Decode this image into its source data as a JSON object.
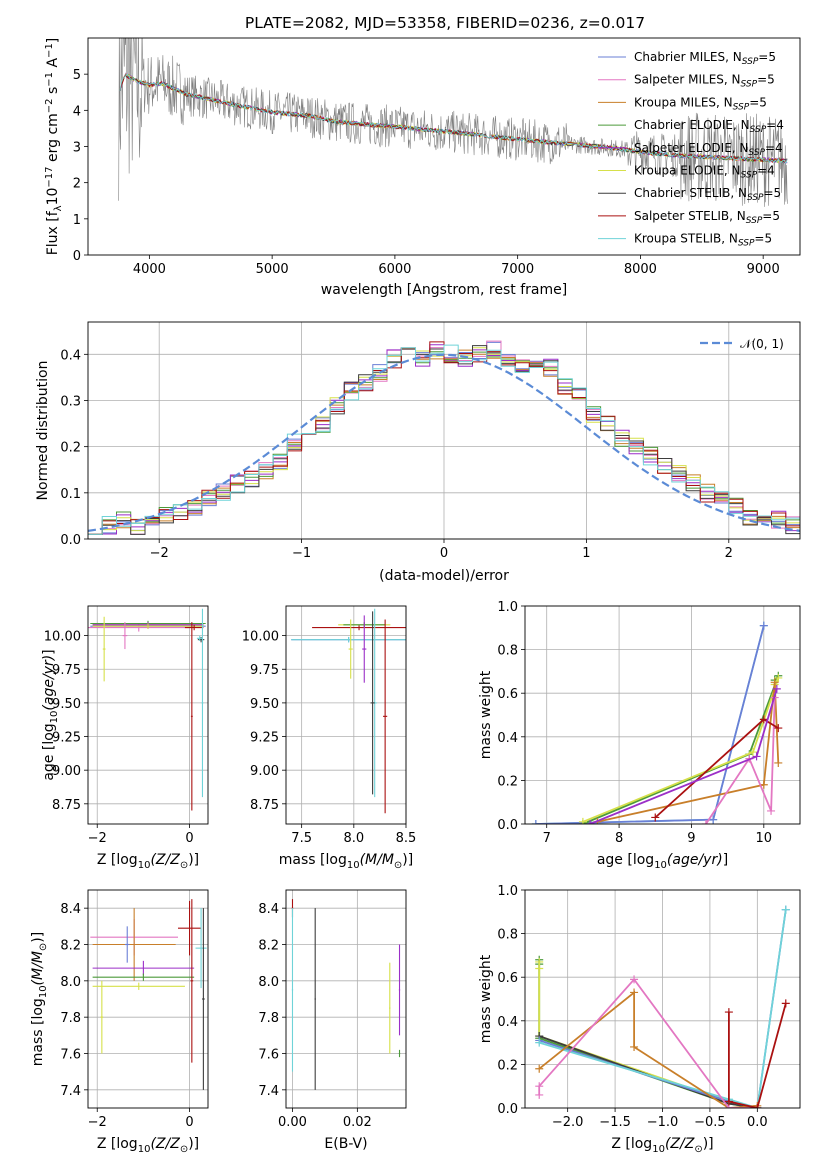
{
  "figure": {
    "title": "PLATE=2082, MJD=53358, FIBERID=0236, z=0.017"
  },
  "colors": {
    "Chabrier MILES": "#6a7fd6",
    "Salpeter MILES": "#e377c2",
    "Kroupa MILES": "#c87f2a",
    "Chabrier ELODIE": "#4c9a3a",
    "Salpeter ELODIE": "#9b2fc8",
    "Kroupa ELODIE": "#d6e04a",
    "Chabrier STELIB": "#3d3d3d",
    "Salpeter STELIB": "#aa1111",
    "Kroupa STELIB": "#6fd3d8",
    "data": "#808080",
    "normal": "#5b8bd6"
  },
  "chart_data": [
    {
      "id": "spectrum",
      "type": "line",
      "xlabel": "wavelength [Angstrom, rest frame]",
      "ylabel": "Flux [f_λ10^-17 erg cm^-2 s^-1 A^-1]",
      "xlim": [
        3500,
        9300
      ],
      "ylim": [
        0,
        6
      ],
      "xticks": [
        4000,
        5000,
        6000,
        7000,
        8000,
        9000
      ],
      "yticks": [
        0,
        1,
        2,
        3,
        4,
        5
      ],
      "legend_position": "top-right",
      "series": [
        {
          "name": "Chabrier MILES, N_SSP=5",
          "label_main": "Chabrier MILES, N",
          "label_sub": "SSP",
          "label_end": "=5"
        },
        {
          "name": "Salpeter MILES, N_SSP=5",
          "label_main": "Salpeter MILES, N",
          "label_sub": "SSP",
          "label_end": "=5"
        },
        {
          "name": "Kroupa MILES, N_SSP=5",
          "label_main": "Kroupa MILES, N",
          "label_sub": "SSP",
          "label_end": "=5"
        },
        {
          "name": "Chabrier ELODIE, N_SSP=4",
          "label_main": "Chabrier ELODIE, N",
          "label_sub": "SSP",
          "label_end": "=4"
        },
        {
          "name": "Salpeter ELODIE, N_SSP=4",
          "label_main": "Salpeter ELODIE, N",
          "label_sub": "SSP",
          "label_end": "=4"
        },
        {
          "name": "Kroupa ELODIE, N_SSP=4",
          "label_main": "Kroupa ELODIE, N",
          "label_sub": "SSP",
          "label_end": "=4"
        },
        {
          "name": "Chabrier STELIB, N_SSP=5",
          "label_main": "Chabrier STELIB, N",
          "label_sub": "SSP",
          "label_end": "=5"
        },
        {
          "name": "Salpeter STELIB, N_SSP=5",
          "label_main": "Salpeter STELIB, N",
          "label_sub": "SSP",
          "label_end": "=5"
        },
        {
          "name": "Kroupa STELIB, N_SSP=5",
          "label_main": "Kroupa STELIB, N",
          "label_sub": "SSP",
          "label_end": "=5"
        }
      ],
      "continuum": {
        "x": [
          3750,
          3800,
          3900,
          4000,
          4100,
          4300,
          4500,
          4700,
          5000,
          5300,
          5500,
          5800,
          6000,
          6300,
          6600,
          7000,
          7300,
          7500,
          7800,
          8000,
          8300,
          8600,
          8900,
          9200
        ],
        "y": [
          4.5,
          5.0,
          4.8,
          4.7,
          4.75,
          4.45,
          4.3,
          4.15,
          3.95,
          3.85,
          3.7,
          3.6,
          3.55,
          3.45,
          3.35,
          3.2,
          3.1,
          3.05,
          2.95,
          2.85,
          2.75,
          2.7,
          2.65,
          2.6
        ]
      }
    },
    {
      "id": "residuals",
      "type": "step",
      "xlabel": "(data-model)/error",
      "ylabel": "Normed distribution",
      "xlim": [
        -2.5,
        2.5
      ],
      "ylim": [
        0,
        0.47
      ],
      "xticks": [
        -2,
        -1,
        0,
        1,
        2
      ],
      "yticks": [
        0.0,
        0.1,
        0.2,
        0.3,
        0.4
      ],
      "grid": true,
      "legend_position": "top-right",
      "bin_width": 0.1,
      "bin_start": -2.5,
      "reference_curve": {
        "name": "N(0, 1)",
        "style": "dashed"
      },
      "values": [
        0.03,
        0.03,
        0.04,
        0.03,
        0.03,
        0.05,
        0.06,
        0.07,
        0.09,
        0.1,
        0.12,
        0.13,
        0.15,
        0.17,
        0.21,
        0.23,
        0.25,
        0.29,
        0.32,
        0.34,
        0.36,
        0.39,
        0.42,
        0.39,
        0.41,
        0.4,
        0.39,
        0.4,
        0.41,
        0.39,
        0.38,
        0.38,
        0.37,
        0.33,
        0.31,
        0.27,
        0.25,
        0.22,
        0.2,
        0.18,
        0.16,
        0.14,
        0.12,
        0.1,
        0.09,
        0.07,
        0.05,
        0.04,
        0.04,
        0.03
      ]
    },
    {
      "id": "age-vs-Z",
      "type": "scatter",
      "xlabel_main": "Z [log",
      "xlabel_rest": "(Z/Z",
      "xlabel_end": ")]",
      "ylabel": "age  [log10(age/yr)]",
      "xlim": [
        -2.2,
        0.4
      ],
      "ylim": [
        8.6,
        10.22
      ],
      "xticks": [
        -2,
        0
      ],
      "yticks": [
        8.75,
        9.0,
        9.25,
        9.5,
        9.75,
        10.0
      ],
      "grid": true,
      "points": [
        {
          "model": "Chabrier MILES",
          "x": -0.9,
          "y": 10.07,
          "xerr": 1.25,
          "yerr": 0.02
        },
        {
          "model": "Salpeter MILES",
          "x": -1.1,
          "y": 10.06,
          "xerr": 1.1,
          "yerr": 0.03
        },
        {
          "model": "Kroupa MILES",
          "x": -0.9,
          "y": 10.08,
          "xerr": 1.2,
          "yerr": 0.02
        },
        {
          "model": "Chabrier ELODIE",
          "x": -0.9,
          "y": 10.09,
          "xerr": 1.25,
          "yerr": 0.02
        },
        {
          "model": "Salpeter ELODIE",
          "x": -0.9,
          "y": 10.08,
          "xerr": 1.2,
          "yerr": 0.02
        },
        {
          "model": "Kroupa ELODIE",
          "x": -0.9,
          "y": 10.07,
          "xerr": 1.2,
          "yerr": 0.02
        },
        {
          "model": "Chabrier STELIB",
          "x": 0.25,
          "y": 9.97,
          "xerr": 0.07,
          "yerr": 0.02
        },
        {
          "model": "Salpeter STELIB",
          "x": 0.1,
          "y": 10.06,
          "xerr": 0.2,
          "yerr": 0.02
        },
        {
          "model": "Kroupa STELIB",
          "x": 0.22,
          "y": 9.98,
          "xerr": 0.06,
          "yerr": 0.02
        },
        {
          "model": "Salpeter MILES",
          "x": -1.4,
          "y": 10.0,
          "xerr": 0.05,
          "yerr": 0.1
        },
        {
          "model": "Kroupa ELODIE",
          "x": -1.85,
          "y": 9.9,
          "xerr": 0.03,
          "yerr": 0.24
        },
        {
          "model": "Salpeter STELIB",
          "x": 0.05,
          "y": 9.4,
          "xerr": 0.02,
          "yerr": 0.7
        },
        {
          "model": "Kroupa STELIB",
          "x": 0.28,
          "y": 9.5,
          "xerr": 0.02,
          "yerr": 0.7
        }
      ]
    },
    {
      "id": "age-vs-mass",
      "type": "scatter",
      "xlabel_main": "mass [log",
      "xlabel_rest": "(M/M",
      "xlabel_end": ")]",
      "xlim": [
        7.35,
        8.5
      ],
      "ylim": [
        8.6,
        10.22
      ],
      "xticks": [
        7.5,
        8.0,
        8.5
      ],
      "yticks": [
        8.75,
        9.0,
        9.25,
        9.5,
        9.75,
        10.0
      ],
      "grid": true,
      "points": [
        {
          "model": "Chabrier MILES",
          "x": 7.95,
          "y": 9.97,
          "xerr": 0.55,
          "yerr": 0.02
        },
        {
          "model": "Kroupa STELIB",
          "x": 7.95,
          "y": 9.97,
          "xerr": 0.55,
          "yerr": 0.02
        },
        {
          "model": "Salpeter STELIB",
          "x": 8.05,
          "y": 10.06,
          "xerr": 0.45,
          "yerr": 0.02
        },
        {
          "model": "Kroupa ELODIE",
          "x": 8.1,
          "y": 10.08,
          "xerr": 0.25,
          "yerr": 0.02
        },
        {
          "model": "Chabrier ELODIE",
          "x": 8.1,
          "y": 10.08,
          "xerr": 0.2,
          "yerr": 0.02
        },
        {
          "model": "Salpeter STELIB",
          "x": 8.3,
          "y": 9.4,
          "xerr": 0.02,
          "yerr": 0.72
        },
        {
          "model": "Kroupa STELIB",
          "x": 8.2,
          "y": 9.5,
          "xerr": 0.02,
          "yerr": 0.7
        },
        {
          "model": "Chabrier STELIB",
          "x": 8.18,
          "y": 9.5,
          "xerr": 0.02,
          "yerr": 0.68
        },
        {
          "model": "Salpeter ELODIE",
          "x": 8.1,
          "y": 9.9,
          "xerr": 0.02,
          "yerr": 0.25
        },
        {
          "model": "Kroupa ELODIE",
          "x": 7.97,
          "y": 9.9,
          "xerr": 0.02,
          "yerr": 0.22
        }
      ]
    },
    {
      "id": "weight-vs-age",
      "type": "line",
      "xlabel": "age  [log10(age/yr)]",
      "ylabel": "mass weight",
      "xlim": [
        6.7,
        10.5
      ],
      "ylim": [
        0,
        1
      ],
      "xticks": [
        7,
        8,
        9,
        10
      ],
      "yticks": [
        0.0,
        0.2,
        0.4,
        0.6,
        0.8,
        1.0
      ],
      "grid": true,
      "series": [
        {
          "model": "Kroupa STELIB",
          "x": [
            6.85,
            9.3,
            10.0
          ],
          "y": [
            0.0,
            0.02,
            0.91
          ]
        },
        {
          "model": "Chabrier MILES",
          "x": [
            6.85,
            9.3,
            10.0
          ],
          "y": [
            0.0,
            0.02,
            0.91
          ]
        },
        {
          "model": "Chabrier ELODIE",
          "x": [
            7.5,
            9.8,
            10.2,
            10.15
          ],
          "y": [
            0.0,
            0.32,
            0.68,
            0.66
          ]
        },
        {
          "model": "Kroupa ELODIE",
          "x": [
            7.5,
            9.85,
            10.2,
            10.15
          ],
          "y": [
            0.01,
            0.33,
            0.67,
            0.64
          ]
        },
        {
          "model": "Kroupa MILES",
          "x": [
            7.7,
            10.0,
            10.15,
            10.2
          ],
          "y": [
            0.01,
            0.18,
            0.65,
            0.28
          ]
        },
        {
          "model": "Salpeter MILES",
          "x": [
            9.2,
            9.8,
            10.1,
            10.15
          ],
          "y": [
            0.0,
            0.3,
            0.06,
            0.58
          ]
        },
        {
          "model": "Salpeter STELIB",
          "x": [
            8.5,
            10.0,
            10.2
          ],
          "y": [
            0.03,
            0.48,
            0.44
          ]
        },
        {
          "model": "Salpeter ELODIE",
          "x": [
            7.6,
            9.9,
            10.18
          ],
          "y": [
            0.0,
            0.31,
            0.62
          ]
        }
      ]
    },
    {
      "id": "mass-vs-Z",
      "type": "scatter",
      "xlabel_main": "Z [log",
      "xlabel_rest": "(Z/Z",
      "xlabel_end": ")]",
      "ylabel_main": "mass [log",
      "ylabel_rest": "(M/M",
      "ylabel_end": ")]",
      "xlim": [
        -2.2,
        0.4
      ],
      "ylim": [
        7.3,
        8.5
      ],
      "xticks": [
        -2,
        0
      ],
      "yticks": [
        7.4,
        7.6,
        7.8,
        8.0,
        8.2,
        8.4
      ],
      "grid": true,
      "points": [
        {
          "model": "Salpeter MILES",
          "x": -1.2,
          "y": 8.24,
          "xerr": 0.95,
          "yerr": 0.1
        },
        {
          "model": "Kroupa MILES",
          "x": -1.2,
          "y": 8.2,
          "xerr": 0.9,
          "yerr": 0.2
        },
        {
          "model": "Salpeter ELODIE",
          "x": -1.0,
          "y": 8.07,
          "xerr": 1.1,
          "yerr": 0.04
        },
        {
          "model": "Chabrier MILES",
          "x": -1.35,
          "y": 8.2,
          "xerr": 0.05,
          "yerr": 0.1
        },
        {
          "model": "Chabrier ELODIE",
          "x": -1.0,
          "y": 8.02,
          "xerr": 1.1,
          "yerr": 0.02
        },
        {
          "model": "Kroupa ELODIE",
          "x": -1.1,
          "y": 7.97,
          "xerr": 1.0,
          "yerr": 0.02
        },
        {
          "model": "Salpeter STELIB",
          "x": 0.0,
          "y": 8.29,
          "xerr": 0.25,
          "yerr": 0.15
        },
        {
          "model": "Kroupa STELIB",
          "x": 0.25,
          "y": 8.18,
          "xerr": 0.12,
          "yerr": 0.22
        },
        {
          "model": "Chabrier STELIB",
          "x": 0.3,
          "y": 7.9,
          "xerr": 0.03,
          "yerr": 0.5
        },
        {
          "model": "Kroupa ELODIE",
          "x": -1.9,
          "y": 7.8,
          "xerr": 0.03,
          "yerr": 0.2
        },
        {
          "model": "Salpeter STELIB",
          "x": 0.05,
          "y": 8.0,
          "xerr": 0.03,
          "yerr": 0.45
        }
      ]
    },
    {
      "id": "mass-vs-ebv",
      "type": "scatter",
      "xlabel": "E(B-V)",
      "xlim": [
        -0.002,
        0.035
      ],
      "ylim": [
        7.3,
        8.5
      ],
      "xticks": [
        0.0,
        0.02
      ],
      "yticks": [
        7.4,
        7.6,
        7.8,
        8.0,
        8.2,
        8.4
      ],
      "grid": true,
      "points": [
        {
          "model": "Salpeter STELIB",
          "x": 0.0,
          "y": 8.4,
          "xerr": 0.0002,
          "yerr": 0.05
        },
        {
          "model": "Kroupa STELIB",
          "x": 0.0,
          "y": 7.95,
          "xerr": 0.0002,
          "yerr": 0.45
        },
        {
          "model": "Chabrier STELIB",
          "x": 0.007,
          "y": 7.9,
          "xerr": 0.0002,
          "yerr": 0.5
        },
        {
          "model": "Kroupa ELODIE",
          "x": 0.03,
          "y": 7.85,
          "xerr": 0.0002,
          "yerr": 0.25
        },
        {
          "model": "Salpeter ELODIE",
          "x": 0.033,
          "y": 7.95,
          "xerr": 0.0002,
          "yerr": 0.25
        },
        {
          "model": "Chabrier ELODIE",
          "x": 0.033,
          "y": 7.6,
          "xerr": 0.0002,
          "yerr": 0.02
        }
      ]
    },
    {
      "id": "weight-vs-Z",
      "type": "line",
      "xlabel_main": "Z [log",
      "xlabel_rest": "(Z/Z",
      "xlabel_end": ")]",
      "ylabel": "mass weight",
      "xlim": [
        -2.45,
        0.45
      ],
      "ylim": [
        0,
        1
      ],
      "xticks": [
        -2.0,
        -1.5,
        -1.0,
        -0.5,
        0.0
      ],
      "yticks": [
        0.0,
        0.2,
        0.4,
        0.6,
        0.8,
        1.0
      ],
      "grid": true,
      "series": [
        {
          "model": "Chabrier ELODIE",
          "x": [
            -2.3,
            -2.3,
            -2.3,
            -0.3,
            0.0
          ],
          "y": [
            0.68,
            0.66,
            0.32,
            0.02,
            0.0
          ]
        },
        {
          "model": "Kroupa ELODIE",
          "x": [
            -2.3,
            -2.3,
            -2.3,
            -0.3,
            0.0
          ],
          "y": [
            0.67,
            0.64,
            0.33,
            0.03,
            0.0
          ]
        },
        {
          "model": "Chabrier STELIB",
          "x": [
            -2.3,
            -0.3,
            0.0
          ],
          "y": [
            0.33,
            0.02,
            0.0
          ]
        },
        {
          "model": "Chabrier MILES",
          "x": [
            -2.3,
            -0.3,
            0.0,
            0.3
          ],
          "y": [
            0.31,
            0.03,
            0.0,
            0.91
          ]
        },
        {
          "model": "Kroupa STELIB",
          "x": [
            -2.3,
            -0.3,
            0.0,
            0.3
          ],
          "y": [
            0.3,
            0.04,
            0.0,
            0.91
          ]
        },
        {
          "model": "Kroupa MILES",
          "x": [
            -2.3,
            -1.3,
            -1.3,
            -0.3,
            0.0
          ],
          "y": [
            0.18,
            0.53,
            0.28,
            0.0,
            0.01
          ]
        },
        {
          "model": "Salpeter MILES",
          "x": [
            -2.3,
            -2.3,
            -1.3,
            -0.3,
            0.0
          ],
          "y": [
            0.06,
            0.1,
            0.59,
            0.0,
            0.0
          ]
        },
        {
          "model": "Salpeter STELIB",
          "x": [
            -0.3,
            -0.3,
            0.0,
            0.3
          ],
          "y": [
            0.44,
            0.03,
            0.0,
            0.48
          ]
        }
      ]
    }
  ]
}
